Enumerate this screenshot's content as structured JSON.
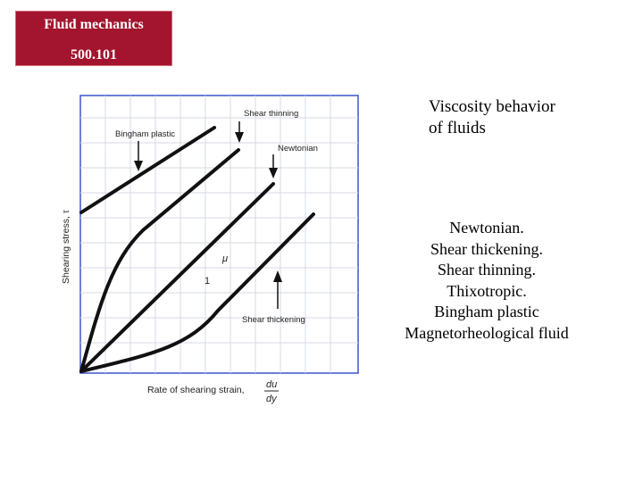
{
  "header": {
    "title": "Fluid mechanics",
    "code": "500.101",
    "background": "#a3142e"
  },
  "diagram": {
    "y_axis_label": "Shearing stress, τ",
    "x_axis_label": "Rate of shearing strain,",
    "x_axis_fraction_num": "du",
    "x_axis_fraction_den": "dy",
    "curve_labels": {
      "bingham": "Bingham plastic",
      "shear_thinning": "Shear thinning",
      "newtonian": "Newtonian",
      "shear_thickening": "Shear thickening"
    },
    "slope_symbol": "μ",
    "slope_unit": "1"
  },
  "slide": {
    "heading_line1": "Viscosity behavior",
    "heading_line2": "of fluids",
    "types": [
      "Newtonian.",
      "Shear thickening.",
      "Shear thinning.",
      "Thixotropic.",
      "Bingham plastic",
      "Magnetorheological fluid"
    ]
  }
}
